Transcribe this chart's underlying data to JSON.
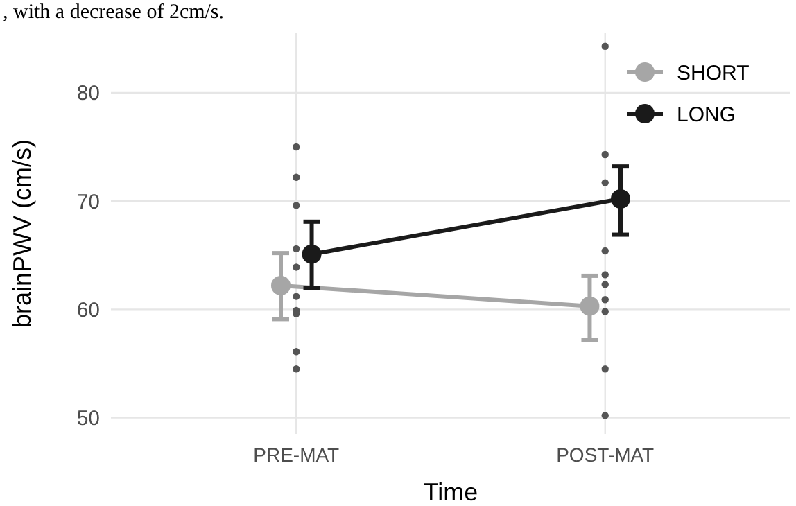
{
  "chart_data": {
    "type": "line",
    "xlabel": "Time",
    "ylabel": "brainPWV (cm/s)",
    "annotations": [
      ", with a decrease of 2cm/s."
    ],
    "categories": [
      "PRE-MAT",
      "POST-MAT"
    ],
    "ylim": [
      48.5,
      85.5
    ],
    "yticks": [
      50,
      60,
      70,
      80
    ],
    "grid": true,
    "legend": "top right",
    "marker": "circle",
    "series": [
      {
        "type": "scatter",
        "color": "#555555",
        "x": [
          "PRE-MAT",
          "PRE-MAT",
          "PRE-MAT",
          "PRE-MAT",
          "PRE-MAT",
          "PRE-MAT",
          "PRE-MAT",
          "PRE-MAT",
          "PRE-MAT",
          "PRE-MAT",
          "POST-MAT",
          "POST-MAT",
          "POST-MAT",
          "POST-MAT",
          "POST-MAT",
          "POST-MAT",
          "POST-MAT",
          "POST-MAT",
          "POST-MAT",
          "POST-MAT"
        ],
        "values": [
          75,
          72.2,
          69.6,
          65.6,
          63.9,
          61.2,
          59.9,
          59.6,
          56.1,
          54.5,
          84.3,
          74.3,
          71.7,
          65.4,
          63.2,
          62.3,
          60.9,
          59.8,
          54.5,
          50.2
        ]
      },
      {
        "name": "SHORT",
        "color": "#a6a6a6",
        "values": [
          62.2,
          60.3
        ],
        "errors": [
          [
            59.1,
            65.2
          ],
          [
            57.2,
            63.1
          ]
        ]
      },
      {
        "name": "LONG",
        "color": "#1a1a1a",
        "values": [
          65.1,
          70.2
        ],
        "errors": [
          [
            62,
            68.1
          ],
          [
            66.9,
            73.2
          ]
        ]
      }
    ]
  }
}
